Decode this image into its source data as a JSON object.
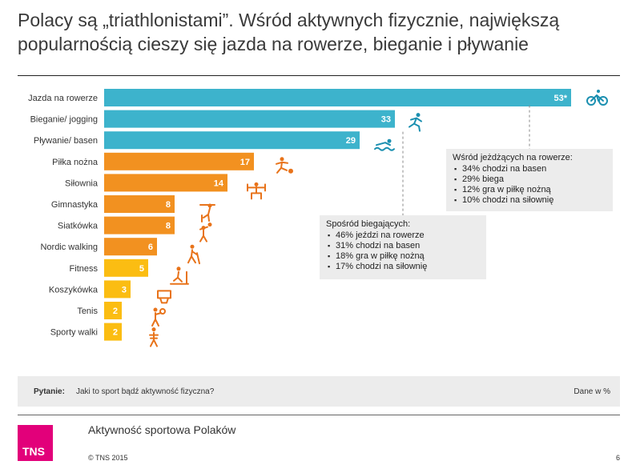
{
  "title": {
    "line1": "Polacy są „triathlonistami”. Wśród aktywnych fizycznie, największą",
    "line2": "popularnością cieszy się jazda na rowerze, bieganie i pływanie"
  },
  "chart_data": {
    "type": "bar",
    "orientation": "horizontal",
    "categories": [
      "Jazda na rowerze",
      "Bieganie/ jogging",
      "Pływanie/ basen",
      "Piłka nożna",
      "Siłownia",
      "Gimnastyka",
      "Siatkówka",
      "Nordic walking",
      "Fitness",
      "Koszykówka",
      "Tenis",
      "Sporty walki"
    ],
    "values": [
      53,
      33,
      29,
      17,
      14,
      8,
      8,
      6,
      5,
      3,
      2,
      2
    ],
    "value_labels": [
      "53*",
      "33",
      "29",
      "17",
      "14",
      "8",
      "8",
      "6",
      "5",
      "3",
      "2",
      "2"
    ],
    "colors": [
      "#3db3cc",
      "#3db3cc",
      "#3db3cc",
      "#f29120",
      "#f29120",
      "#f29120",
      "#f29120",
      "#f29120",
      "#fbbd12",
      "#fbbd12",
      "#fbbd12",
      "#fbbd12"
    ],
    "icons": [
      "bicycle-icon",
      "runner-icon",
      "swimmer-icon",
      "soccer-player-icon",
      "weightlifter-icon",
      "gymnast-icon",
      "volleyball-player-icon",
      "nordic-walker-icon",
      "treadmill-icon",
      "basketball-hoop-icon",
      "tennis-player-icon",
      "martial-artist-icon"
    ],
    "grid": false,
    "legend": "none"
  },
  "notes": {
    "cyclists": {
      "heading": "Wśród jeżdżących na rowerze:",
      "items": [
        "34% chodzi na basen",
        "29% biega",
        "12% gra w piłkę nożną",
        "10% chodzi na siłownię"
      ]
    },
    "runners": {
      "heading": "Spośród biegających:",
      "items": [
        "46% jeździ na rowerze",
        "31% chodzi na basen",
        "18% gra w piłkę nożną",
        "17% chodzi na siłownię"
      ]
    }
  },
  "question": {
    "label": "Pytanie:",
    "text": "Jaki to sport bądź aktywność fizyczna?",
    "unit": "Dane w %"
  },
  "footer": {
    "logo": "TNS",
    "title": "Aktywność sportowa Polaków",
    "copyright": "© TNS 2015",
    "page": "6"
  },
  "colors": {
    "blue": "#3db3cc",
    "orange": "#f29120",
    "yellow": "#fbbd12",
    "brand_magenta": "#e2007a",
    "icon_orange": "#e8731a",
    "icon_blue": "#1a8fb0"
  }
}
